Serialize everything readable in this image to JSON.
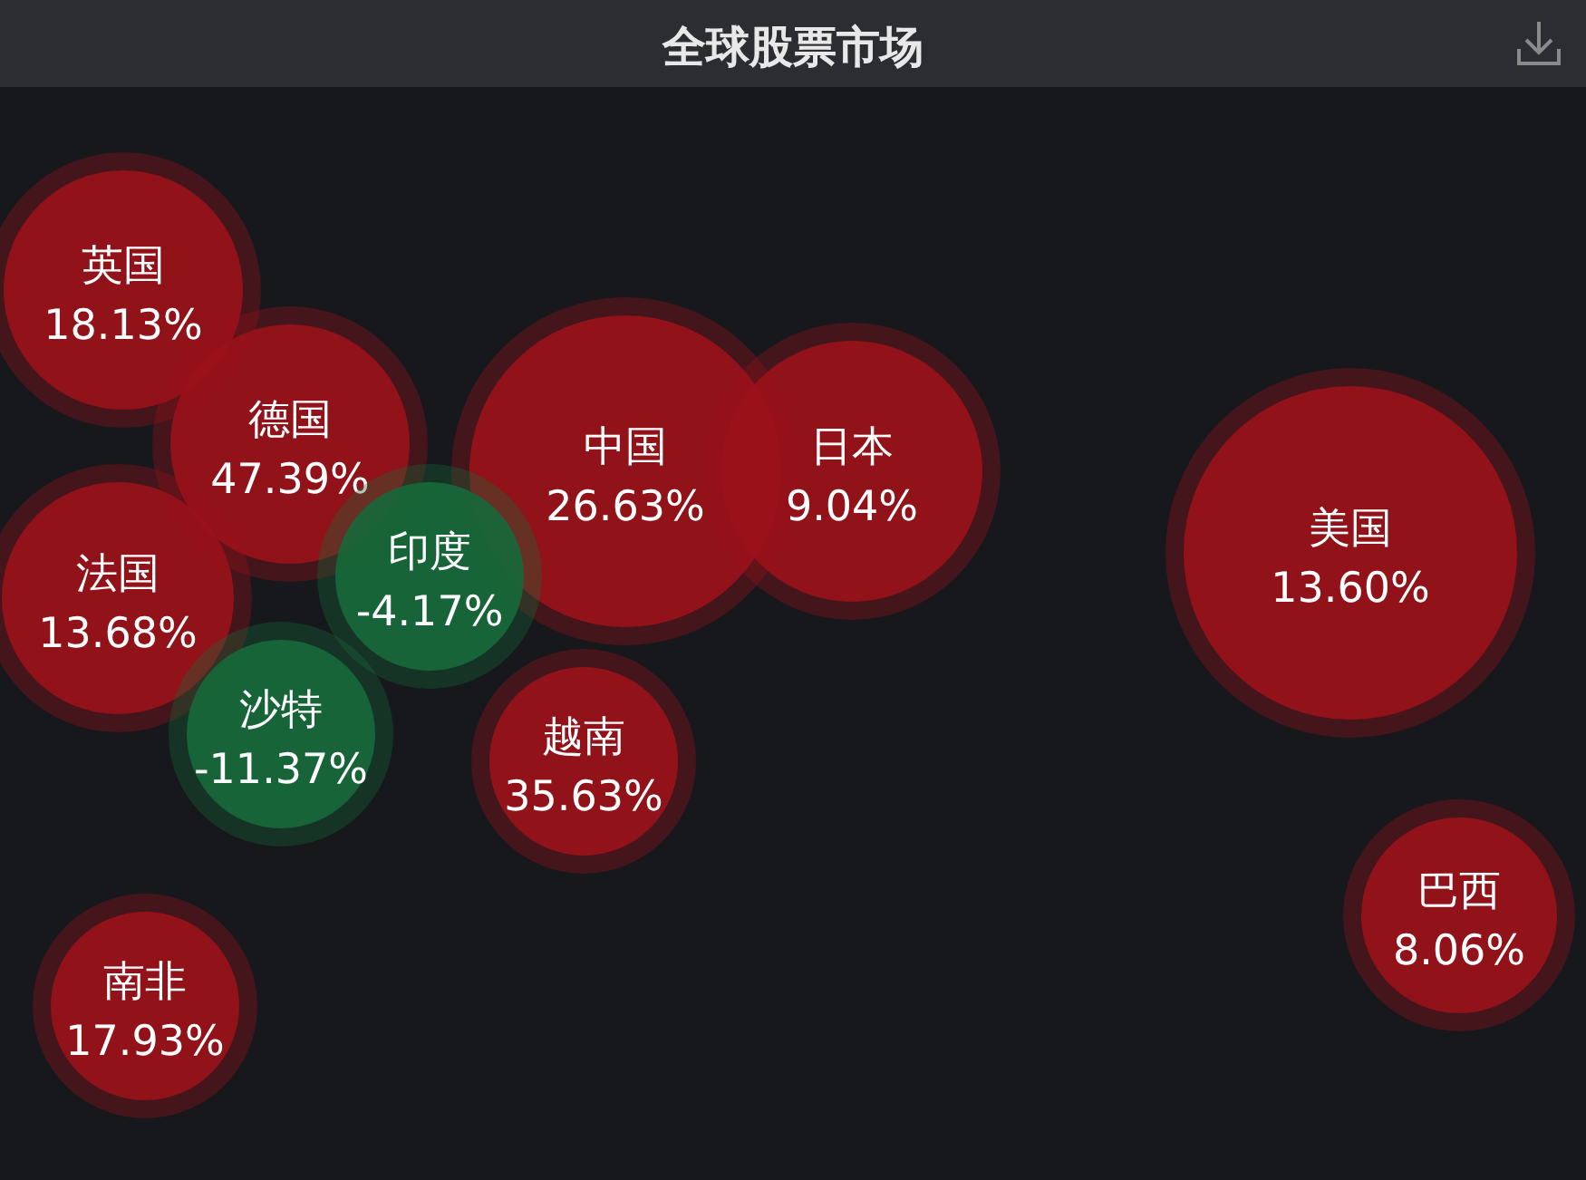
{
  "chart_data": {
    "type": "other",
    "title": "全球股票市场",
    "categories": [
      "英国",
      "德国",
      "法国",
      "中国",
      "日本",
      "美国",
      "印度",
      "沙特",
      "越南",
      "巴西",
      "南非"
    ],
    "values": [
      18.13,
      47.39,
      13.68,
      26.63,
      9.04,
      13.6,
      -4.17,
      -11.37,
      35.63,
      8.06,
      17.93
    ],
    "value_labels": [
      "18.13%",
      "47.39%",
      "13.68%",
      "26.63%",
      "9.04%",
      "13.60%",
      "-4.17%",
      "-11.37%",
      "35.63%",
      "8.06%",
      "17.93%"
    ],
    "colors": [
      "#9b1219",
      "#9b1219",
      "#9b1219",
      "#9b1219",
      "#9b1219",
      "#9b1219",
      "#16693a",
      "#16693a",
      "#9b1219",
      "#9b1219",
      "#9b1219"
    ]
  }
}
